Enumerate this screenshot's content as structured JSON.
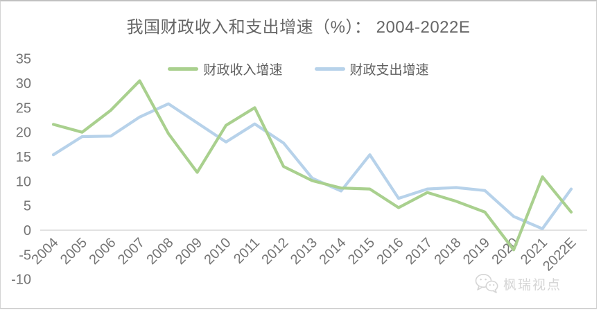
{
  "chart_data": {
    "type": "line",
    "title": "我国财政收入和支出增速（%）： 2004-2022E",
    "categories": [
      "2004",
      "2005",
      "2006",
      "2007",
      "2008",
      "2009",
      "2010",
      "2011",
      "2012",
      "2013",
      "2014",
      "2015",
      "2016",
      "2017",
      "2018",
      "2019",
      "2020",
      "2021",
      "2022E"
    ],
    "series": [
      {
        "name": "财政收入增速",
        "color": "#a9d08e",
        "values": [
          21.6,
          20.0,
          24.5,
          30.5,
          19.7,
          11.8,
          21.4,
          25.0,
          13.0,
          10.1,
          8.6,
          8.4,
          4.6,
          7.7,
          5.9,
          3.7,
          -4.0,
          10.9,
          3.7
        ]
      },
      {
        "name": "财政支出增速",
        "color": "#b7d2ea",
        "values": [
          15.4,
          19.1,
          19.2,
          23.1,
          25.8,
          21.9,
          18.0,
          21.7,
          17.8,
          10.6,
          8.0,
          15.4,
          6.5,
          8.4,
          8.7,
          8.1,
          2.8,
          0.3,
          8.4
        ]
      }
    ],
    "xlabel": "",
    "ylabel": "",
    "ylim": [
      -10,
      35
    ],
    "yticks": [
      35,
      30,
      25,
      20,
      15,
      10,
      5,
      0,
      -5,
      -10
    ],
    "grid": false,
    "legend_position": "top-center",
    "axis_line_color": "#d8d8d8",
    "tick_label_color": "#757575",
    "title_color": "#666666"
  },
  "watermark": {
    "text": "枫瑞视点",
    "icon": "wechat-icon",
    "color": "#d5d5d5"
  }
}
